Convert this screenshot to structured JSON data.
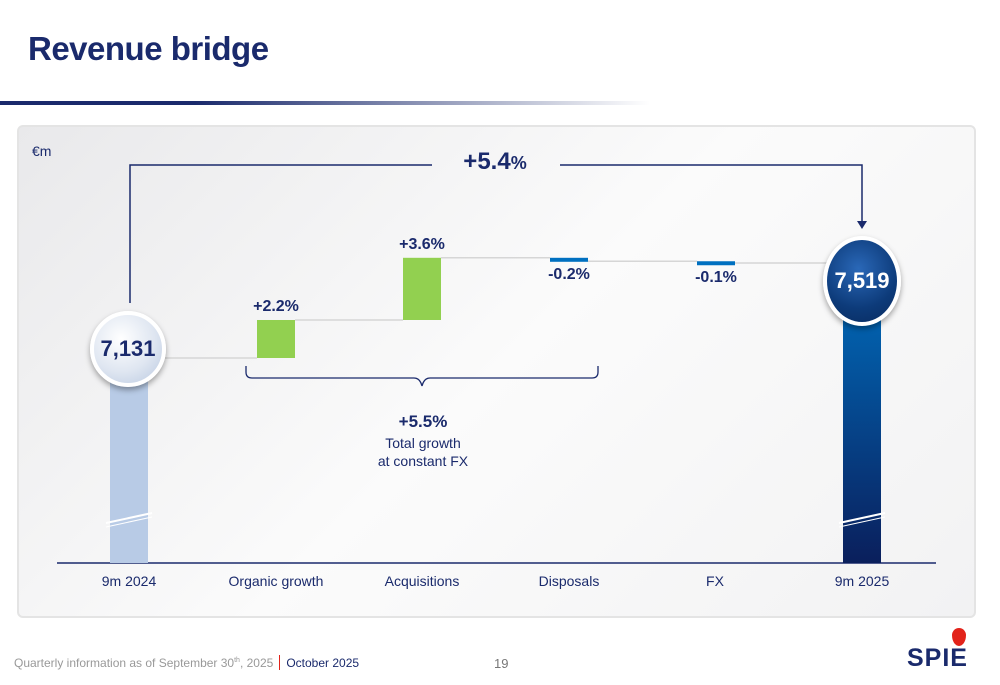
{
  "title": "Revenue bridge",
  "footer": {
    "text": "Quarterly information as of September 30",
    "sup": "th",
    "year": ", 2025",
    "date": "October 2025",
    "page": "19",
    "logo": "SPIE"
  },
  "colors": {
    "navy": "#1a2a6c",
    "green": "#92d050",
    "blue": "#0070c0",
    "start_bar": "#b8cbe6",
    "logo_red": "#e2231a"
  },
  "chart_data": {
    "type": "waterfall",
    "unit": "€m",
    "categories": [
      "9m 2024",
      "Organic growth",
      "Acquisitions",
      "Disposals",
      "FX",
      "9m 2025"
    ],
    "start": {
      "label": "9m 2024",
      "value": 7131,
      "display": "7,131"
    },
    "end": {
      "label": "9m 2025",
      "value": 7519,
      "display": "7,519"
    },
    "deltas": [
      {
        "label": "Organic growth",
        "pct": 2.2,
        "display": "+2.2%"
      },
      {
        "label": "Acquisitions",
        "pct": 3.6,
        "display": "+3.6%"
      },
      {
        "label": "Disposals",
        "pct": -0.2,
        "display": "-0.2%"
      },
      {
        "label": "FX",
        "pct": -0.1,
        "display": "-0.1%"
      }
    ],
    "total_change": {
      "value": "+5.4",
      "unit": "%"
    },
    "brace": {
      "value": "+5.5%",
      "line1": "Total growth",
      "line2": "at constant FX"
    },
    "axis_break": true
  }
}
